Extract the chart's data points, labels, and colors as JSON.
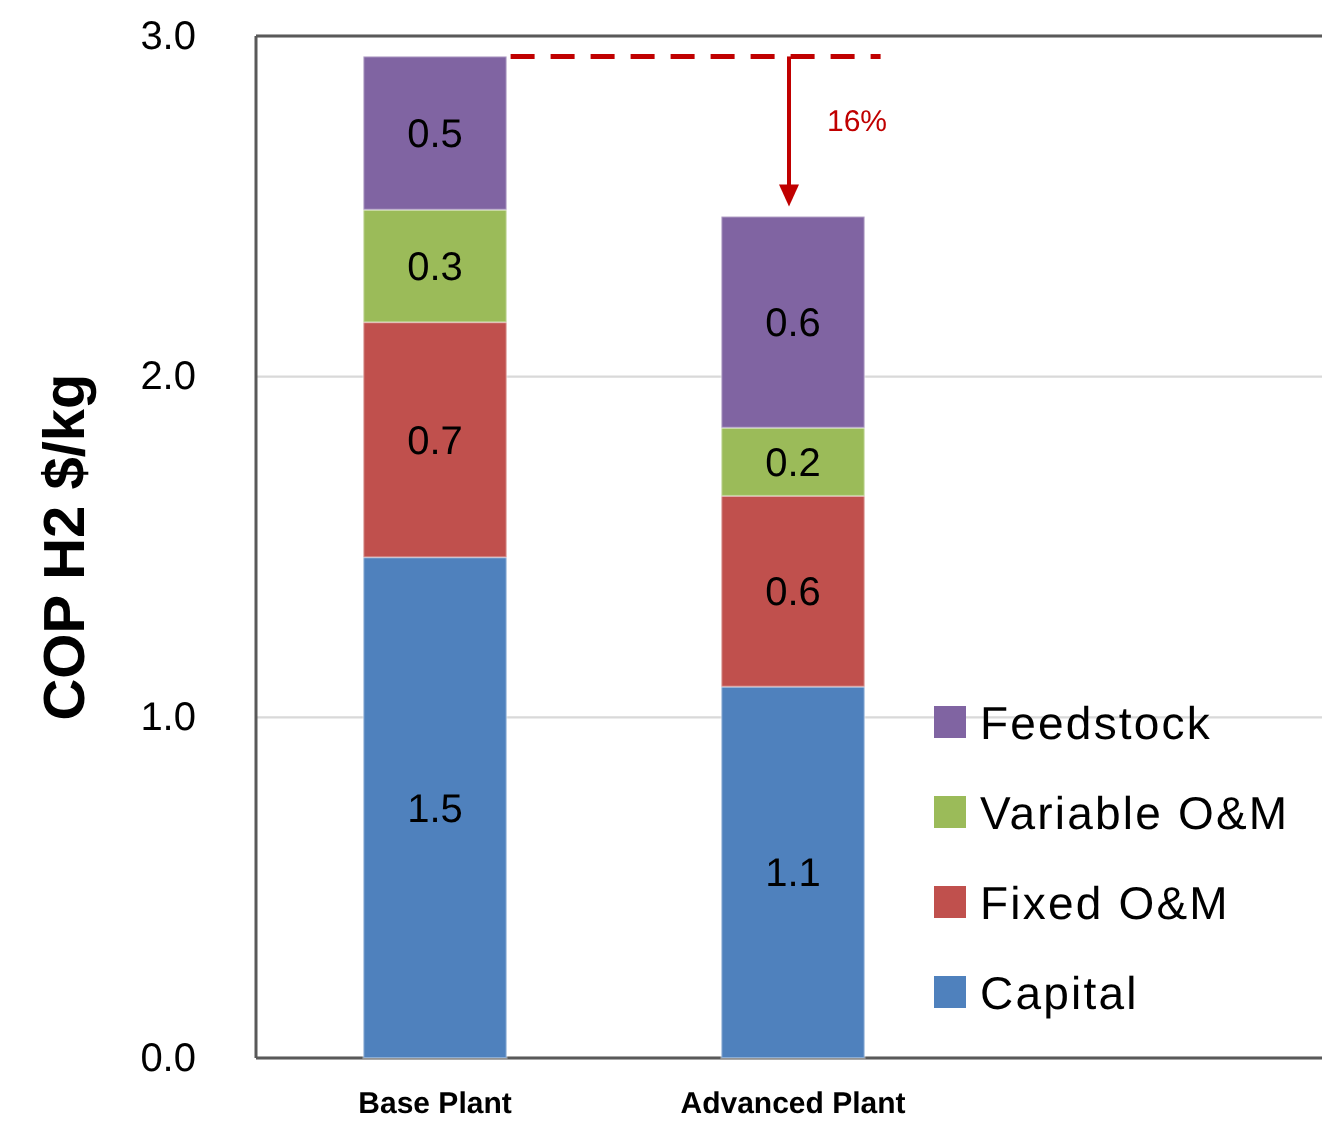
{
  "chart_data": {
    "type": "bar",
    "stacked": true,
    "ylabel": "COP H2 $/kg",
    "categories": [
      "Base Plant",
      "Advanced Plant"
    ],
    "series": [
      {
        "name": "Capital",
        "color": "#4f81bd",
        "values": [
          1.47,
          1.09
        ],
        "value_labels": [
          "1.5",
          "1.1"
        ]
      },
      {
        "name": "Fixed O&M",
        "color": "#c0504d",
        "values": [
          0.69,
          0.56
        ],
        "value_labels": [
          "0.7",
          "0.6"
        ]
      },
      {
        "name": "Variable O&M",
        "color": "#9bbb59",
        "values": [
          0.33,
          0.2
        ],
        "value_labels": [
          "0.3",
          "0.2"
        ]
      },
      {
        "name": "Feedstock",
        "color": "#8064a2",
        "values": [
          0.45,
          0.62
        ],
        "value_labels": [
          "0.5",
          "0.6"
        ]
      }
    ],
    "ylim": [
      0,
      3
    ],
    "yticks": [
      {
        "value": 0,
        "label": "0.0"
      },
      {
        "value": 1,
        "label": "1.0"
      },
      {
        "value": 2,
        "label": "2.0"
      },
      {
        "value": 3,
        "label": "3.0"
      }
    ],
    "grid": "y",
    "legend": "bottom right",
    "ref_lines": [
      {
        "axis": "y",
        "value": 2.94,
        "color": "#c00000",
        "line_style": "dashed"
      }
    ],
    "annotations": [
      "16%"
    ]
  }
}
